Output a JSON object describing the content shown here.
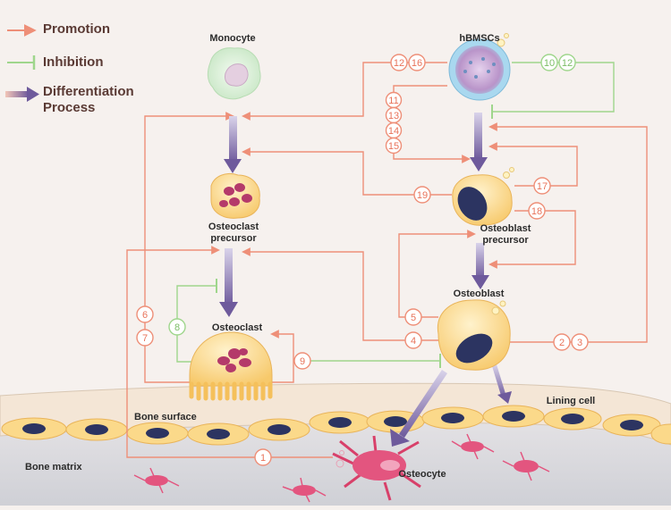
{
  "legend": {
    "promotion": "Promotion",
    "inhibition": "Inhibition",
    "differentiation_line1": "Differentiation",
    "differentiation_line2": "Process"
  },
  "cells": {
    "monocyte": "Monocyte",
    "hbmscs": "hBMSCs",
    "osteoclast_precursor_1": "Osteoclast",
    "osteoclast_precursor_2": "precursor",
    "osteoclast": "Osteoclast",
    "osteoblast_precursor_1": "Osteoblast",
    "osteoblast_precursor_2": "precursor",
    "osteoblast": "Osteoblast",
    "lining_cell": "Lining cell",
    "osteocyte": "Osteocyte"
  },
  "regions": {
    "bone_surface": "Bone surface",
    "bone_matrix": "Bone matrix"
  },
  "badges": {
    "b1": "1",
    "b2": "2",
    "b3": "3",
    "b4": "4",
    "b5": "5",
    "b6": "6",
    "b7": "7",
    "b8": "8",
    "b9": "9",
    "b10": "10",
    "b11": "11",
    "b12a": "12",
    "b12b": "12",
    "b13": "13",
    "b14": "14",
    "b15": "15",
    "b16": "16",
    "b17": "17",
    "b18": "18",
    "b19": "19"
  },
  "colors": {
    "promotion": "#ee8f78",
    "inhibition": "#9fd68c",
    "differentiation": "#6e5a9c",
    "osteoblast_fill": "#fbd98a",
    "osteoclast_fill": "#fbcf75",
    "nucleus": "#2c3461",
    "osteocyte": "#d8406a"
  }
}
